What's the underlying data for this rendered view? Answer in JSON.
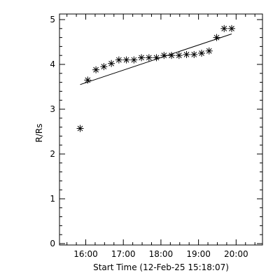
{
  "chart_data": {
    "type": "scatter",
    "xlabel": "Start Time (12-Feb-25 15:18:07)",
    "ylabel": "R/Rs",
    "x_unit": "hours since 15:18:07",
    "xlim": [
      0.0,
      5.4
    ],
    "ylim": [
      0,
      5
    ],
    "x_ticks": [
      {
        "value": 0.6983,
        "label": "16:00"
      },
      {
        "value": 1.6983,
        "label": "17:00"
      },
      {
        "value": 2.6983,
        "label": "18:00"
      },
      {
        "value": 3.6983,
        "label": "19:00"
      },
      {
        "value": 4.6983,
        "label": "20:00"
      }
    ],
    "y_ticks": [
      {
        "value": 0,
        "label": "0"
      },
      {
        "value": 1,
        "label": "1"
      },
      {
        "value": 2,
        "label": "2"
      },
      {
        "value": 3,
        "label": "3"
      },
      {
        "value": 4,
        "label": "4"
      },
      {
        "value": 5,
        "label": "5"
      }
    ],
    "points": [
      {
        "x": 0.55,
        "y": 2.57
      },
      {
        "x": 0.75,
        "y": 3.65
      },
      {
        "x": 0.97,
        "y": 3.88
      },
      {
        "x": 1.18,
        "y": 3.95
      },
      {
        "x": 1.38,
        "y": 4.02
      },
      {
        "x": 1.58,
        "y": 4.1
      },
      {
        "x": 1.78,
        "y": 4.1
      },
      {
        "x": 1.98,
        "y": 4.1
      },
      {
        "x": 2.18,
        "y": 4.15
      },
      {
        "x": 2.38,
        "y": 4.15
      },
      {
        "x": 2.58,
        "y": 4.15
      },
      {
        "x": 2.78,
        "y": 4.2
      },
      {
        "x": 2.98,
        "y": 4.2
      },
      {
        "x": 3.18,
        "y": 4.2
      },
      {
        "x": 3.38,
        "y": 4.22
      },
      {
        "x": 3.58,
        "y": 4.22
      },
      {
        "x": 3.78,
        "y": 4.25
      },
      {
        "x": 3.98,
        "y": 4.3
      },
      {
        "x": 4.18,
        "y": 4.6
      },
      {
        "x": 4.38,
        "y": 4.8
      },
      {
        "x": 4.58,
        "y": 4.8
      }
    ],
    "fit_line": {
      "x": [
        0.55,
        4.58
      ],
      "y": [
        3.55,
        4.68
      ]
    },
    "grid": false,
    "legend": "none"
  }
}
